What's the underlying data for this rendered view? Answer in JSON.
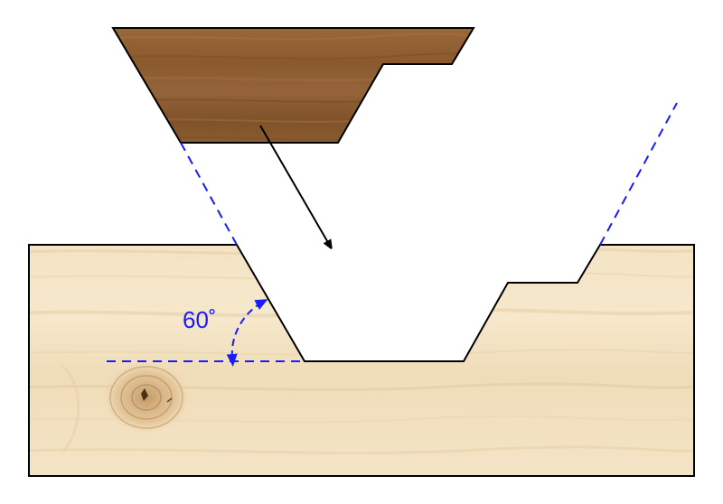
{
  "diagram": {
    "angle_label": "60˚"
  },
  "colors": {
    "construction_line": "#1a1aff",
    "outline": "#000000",
    "dark_wood": "#8a5a2e",
    "light_wood": "#f1dfbf"
  },
  "icons": {
    "insert_arrow": "arrow-down-right-icon",
    "angle_arrow": "double-headed-arc-arrow-icon"
  }
}
